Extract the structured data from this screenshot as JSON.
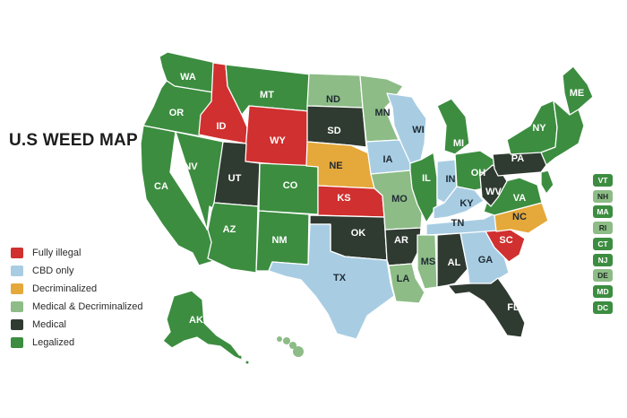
{
  "title": "U.S WEED MAP",
  "colors": {
    "fully_illegal": "#d0302f",
    "cbd_only": "#a8cde3",
    "decriminalized": "#e5a83a",
    "medical_decriminalized": "#8dbc86",
    "medical": "#2f3a31",
    "legalized": "#3c8d40"
  },
  "legend": [
    {
      "label": "Fully illegal",
      "status": "fully_illegal"
    },
    {
      "label": "CBD only",
      "status": "cbd_only"
    },
    {
      "label": "Decriminalized",
      "status": "decriminalized"
    },
    {
      "label": "Medical & Decriminalized",
      "status": "medical_decriminalized"
    },
    {
      "label": "Medical",
      "status": "medical"
    },
    {
      "label": "Legalized",
      "status": "legalized"
    }
  ],
  "states": [
    {
      "code": "WA",
      "status": "legalized"
    },
    {
      "code": "OR",
      "status": "legalized"
    },
    {
      "code": "CA",
      "status": "legalized"
    },
    {
      "code": "NV",
      "status": "legalized"
    },
    {
      "code": "ID",
      "status": "fully_illegal"
    },
    {
      "code": "MT",
      "status": "legalized"
    },
    {
      "code": "WY",
      "status": "fully_illegal"
    },
    {
      "code": "UT",
      "status": "medical"
    },
    {
      "code": "AZ",
      "status": "legalized"
    },
    {
      "code": "CO",
      "status": "legalized"
    },
    {
      "code": "NM",
      "status": "legalized"
    },
    {
      "code": "ND",
      "status": "medical_decriminalized"
    },
    {
      "code": "SD",
      "status": "medical"
    },
    {
      "code": "NE",
      "status": "decriminalized"
    },
    {
      "code": "KS",
      "status": "fully_illegal"
    },
    {
      "code": "OK",
      "status": "medical"
    },
    {
      "code": "TX",
      "status": "cbd_only"
    },
    {
      "code": "MN",
      "status": "medical_decriminalized"
    },
    {
      "code": "IA",
      "status": "cbd_only"
    },
    {
      "code": "MO",
      "status": "medical_decriminalized"
    },
    {
      "code": "AR",
      "status": "medical"
    },
    {
      "code": "LA",
      "status": "medical_decriminalized"
    },
    {
      "code": "WI",
      "status": "cbd_only"
    },
    {
      "code": "IL",
      "status": "legalized"
    },
    {
      "code": "MI",
      "status": "legalized"
    },
    {
      "code": "IN",
      "status": "cbd_only"
    },
    {
      "code": "OH",
      "status": "legalized"
    },
    {
      "code": "KY",
      "status": "cbd_only"
    },
    {
      "code": "TN",
      "status": "cbd_only"
    },
    {
      "code": "MS",
      "status": "medical_decriminalized"
    },
    {
      "code": "AL",
      "status": "medical"
    },
    {
      "code": "GA",
      "status": "cbd_only"
    },
    {
      "code": "FL",
      "status": "medical"
    },
    {
      "code": "SC",
      "status": "fully_illegal"
    },
    {
      "code": "NC",
      "status": "decriminalized"
    },
    {
      "code": "VA",
      "status": "legalized"
    },
    {
      "code": "WV",
      "status": "medical"
    },
    {
      "code": "PA",
      "status": "medical"
    },
    {
      "code": "NY",
      "status": "legalized"
    },
    {
      "code": "ME",
      "status": "legalized"
    },
    {
      "code": "AK",
      "status": "legalized"
    }
  ],
  "northeast_states": [
    {
      "code": "VT",
      "status": "legalized"
    },
    {
      "code": "NH",
      "status": "medical_decriminalized"
    },
    {
      "code": "MA",
      "status": "legalized"
    },
    {
      "code": "RI",
      "status": "medical_decriminalized"
    },
    {
      "code": "CT",
      "status": "legalized"
    },
    {
      "code": "NJ",
      "status": "legalized"
    },
    {
      "code": "DE",
      "status": "medical_decriminalized"
    },
    {
      "code": "MD",
      "status": "legalized"
    },
    {
      "code": "DC",
      "status": "legalized"
    }
  ]
}
